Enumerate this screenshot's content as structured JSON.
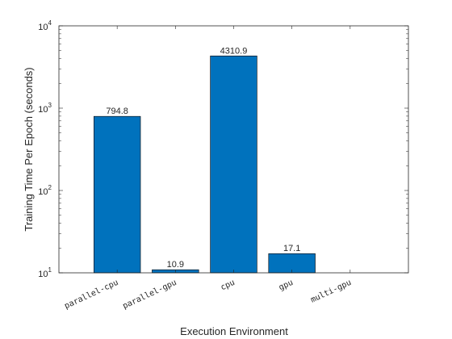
{
  "chart_data": {
    "type": "bar",
    "categories": [
      "parallel-cpu",
      "parallel-gpu",
      "cpu",
      "gpu",
      "multi-gpu"
    ],
    "values": [
      794.8,
      10.9,
      4310.9,
      17.1,
      null
    ],
    "data_labels": [
      "794.8",
      "10.9",
      "4310.9",
      "17.1",
      ""
    ],
    "xlabel": "Execution Environment",
    "ylabel": "Training Time Per Epoch (seconds)",
    "yscale": "log",
    "ylim": [
      10,
      10000
    ],
    "yticks": [
      {
        "value": 10,
        "base": "10",
        "exp": "1"
      },
      {
        "value": 100,
        "base": "10",
        "exp": "2"
      },
      {
        "value": 1000,
        "base": "10",
        "exp": "3"
      },
      {
        "value": 10000,
        "base": "10",
        "exp": "4"
      }
    ],
    "bar_color": "#0072BD",
    "grid": false,
    "legend": "none"
  }
}
